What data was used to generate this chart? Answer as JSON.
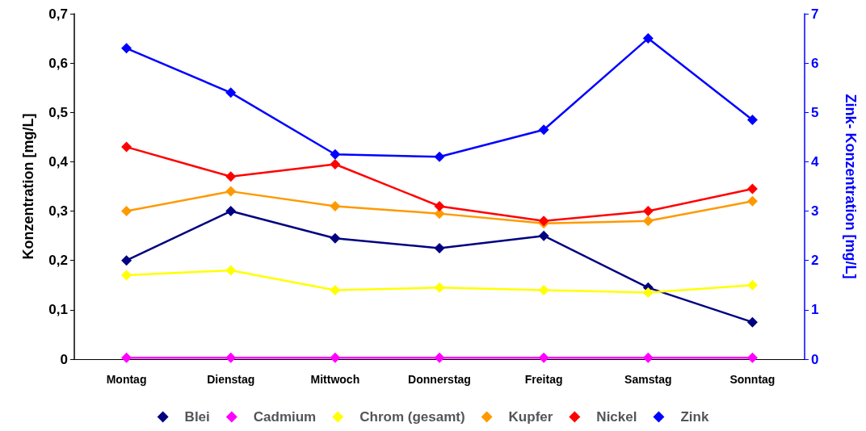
{
  "chart_data": {
    "type": "line",
    "ylabel": "Konzentration [mg/L]",
    "y2label": "Zink- Konzentration [mg/L]",
    "categories": [
      "Montag",
      "Dienstag",
      "Mittwoch",
      "Donnerstag",
      "Freitag",
      "Samstag",
      "Sonntag"
    ],
    "series": [
      {
        "name": "Blei",
        "color": "#000080",
        "values": [
          0.2,
          0.3,
          0.245,
          0.225,
          0.25,
          0.145,
          0.075
        ]
      },
      {
        "name": "Cadmium",
        "color": "#ff00ff",
        "values": [
          0.003,
          0.003,
          0.003,
          0.003,
          0.003,
          0.003,
          0.003
        ]
      },
      {
        "name": "Chrom (gesamt)",
        "color": "#ffff00",
        "values": [
          0.17,
          0.18,
          0.14,
          0.145,
          0.14,
          0.135,
          0.15
        ]
      },
      {
        "name": "Kupfer",
        "color": "#ff9900",
        "values": [
          0.3,
          0.34,
          0.31,
          0.295,
          0.275,
          0.28,
          0.32
        ]
      },
      {
        "name": "Nickel",
        "color": "#ff0000",
        "values": [
          0.43,
          0.37,
          0.395,
          0.31,
          0.28,
          0.3,
          0.345
        ]
      },
      {
        "name": "Zink",
        "color": "#0000ff",
        "axis": "y2",
        "values": [
          6.3,
          5.4,
          4.15,
          4.1,
          4.65,
          6.5,
          4.85
        ]
      }
    ],
    "ylim": [
      0,
      0.7
    ],
    "yticks": [
      0,
      {
        "value": 0.1,
        "label": "0,1"
      },
      {
        "value": 0.2,
        "label": "0,2"
      },
      {
        "value": 0.3,
        "label": "0,3"
      },
      {
        "value": 0.4,
        "label": "0,4"
      },
      {
        "value": 0.5,
        "label": "0,5"
      },
      {
        "value": 0.6,
        "label": "0,6"
      },
      {
        "value": 0.7,
        "label": "0,7"
      }
    ],
    "y2lim": [
      0,
      7
    ],
    "y2ticks": [
      0,
      1,
      2,
      3,
      4,
      5,
      6,
      7
    ],
    "grid": false,
    "legend": "bottom",
    "marker": "diamond",
    "line_style": "solid"
  }
}
